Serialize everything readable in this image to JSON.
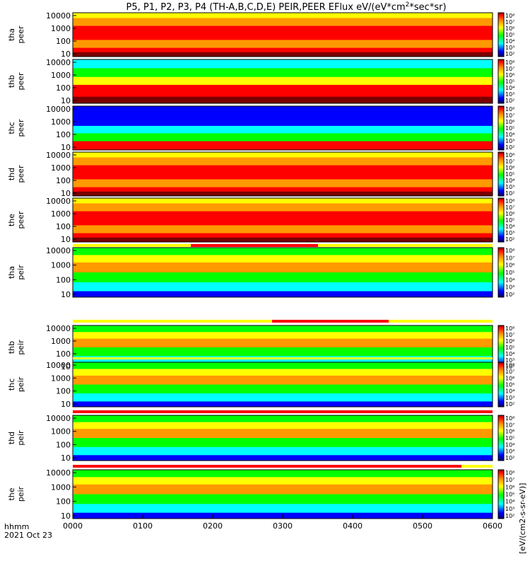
{
  "title_prefix": "P5, P1, P2, P3, P4 (TH-A,B,C,D,E) PEIR,PEER EFlux eV/(eV*cm",
  "title_sup": "2",
  "title_suffix": "*sec*sr)",
  "footer": {
    "label1": "hhmm",
    "label2": "2021 Oct 23"
  },
  "colorbar_label": "[eV/(cm2-s-sr-eV)]",
  "colors": {
    "dark_red": "#7a0000",
    "red": "#ff0000",
    "orange": "#ff9900",
    "yellow": "#ffff00",
    "green": "#00ff00",
    "cyan": "#00ffff",
    "blue": "#0000ff",
    "navy": "#000066",
    "status_red": "#ff0000",
    "status_yellow": "#ffff00"
  },
  "chart_data": {
    "type": "heatmap",
    "x_ticks": [
      "0000",
      "0100",
      "0200",
      "0300",
      "0400",
      "0500",
      "0600"
    ],
    "y_ticks": [
      "10000",
      "1000",
      "100",
      "10"
    ],
    "cbar_ticks_electron": [
      "10⁸",
      "10⁷",
      "10⁶",
      "10⁵",
      "10⁴",
      "10³",
      "10²"
    ],
    "cbar_ticks_ion": [
      "10⁸",
      "10⁷",
      "10⁶",
      "10⁵",
      "10⁴",
      "10³",
      "10²"
    ],
    "panels": [
      {
        "label1": "tha",
        "label2": "peer",
        "kind": "e"
      },
      {
        "label1": "thb",
        "label2": "peer",
        "kind": "e"
      },
      {
        "label1": "thc",
        "label2": "peer",
        "kind": "e"
      },
      {
        "label1": "thd",
        "label2": "peer",
        "kind": "e"
      },
      {
        "label1": "the",
        "label2": "peer",
        "kind": "e"
      },
      {
        "label1": "tha",
        "label2": "peir",
        "kind": "i"
      },
      {
        "label1": "thb",
        "label2": "peir",
        "kind": "i"
      },
      {
        "label1": "thc",
        "label2": "peir",
        "kind": "i"
      },
      {
        "label1": "thd",
        "label2": "peir",
        "kind": "i"
      },
      {
        "label1": "the",
        "label2": "peir",
        "kind": "i"
      }
    ]
  }
}
